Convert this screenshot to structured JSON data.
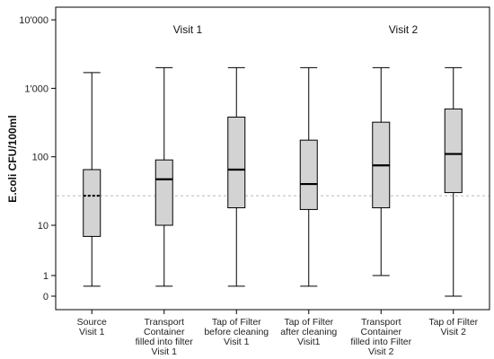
{
  "chart_data": {
    "type": "box",
    "ylabel": "E.coli CFU/100ml",
    "y_scale": "log",
    "y_ticks": [
      {
        "label": "10'000",
        "value": 10000
      },
      {
        "label": "1'000",
        "value": 1000
      },
      {
        "label": "100",
        "value": 100
      },
      {
        "label": "10",
        "value": 10
      },
      {
        "label": "1",
        "value": 1
      },
      {
        "label": "0",
        "value": 0.5
      }
    ],
    "reference_line": {
      "value": 27,
      "style": "dashed"
    },
    "annotations": [
      {
        "text": "Visit 1",
        "near_category": 2
      },
      {
        "text": "Visit 2",
        "near_category": 5
      }
    ],
    "categories": [
      {
        "lines": [
          "Source",
          "Visit 1"
        ]
      },
      {
        "lines": [
          "Transport",
          "Container",
          "filled into filter",
          "Visit 1"
        ]
      },
      {
        "lines": [
          "Tap of Filter",
          "before cleaning",
          "Visit 1"
        ]
      },
      {
        "lines": [
          "Tap of Filter",
          "after cleaning",
          "Visit1"
        ]
      },
      {
        "lines": [
          "Transport",
          "Container",
          "filled into Filter",
          "Visit 2"
        ]
      },
      {
        "lines": [
          "Tap of Filter",
          "Visit 2"
        ]
      }
    ],
    "boxes": [
      {
        "min": 0.7,
        "q1": 6,
        "median": 27,
        "q3": 65,
        "max": 1700,
        "median_style": "dashed"
      },
      {
        "min": 0.7,
        "q1": 10,
        "median": 47,
        "q3": 90,
        "max": 2000
      },
      {
        "min": 0.7,
        "q1": 18,
        "median": 65,
        "q3": 380,
        "max": 2000
      },
      {
        "min": 0.7,
        "q1": 17,
        "median": 40,
        "q3": 175,
        "max": 2000
      },
      {
        "min": 1.0,
        "q1": 18,
        "median": 75,
        "q3": 320,
        "max": 2000
      },
      {
        "min": 0.5,
        "q1": 30,
        "median": 110,
        "q3": 500,
        "max": 2000
      }
    ],
    "ylim": [
      0.5,
      10000
    ],
    "grid": false,
    "colors": {
      "box_fill": "#d3d3d3",
      "stroke": "#000000",
      "reference": "#b8b8b8"
    }
  }
}
